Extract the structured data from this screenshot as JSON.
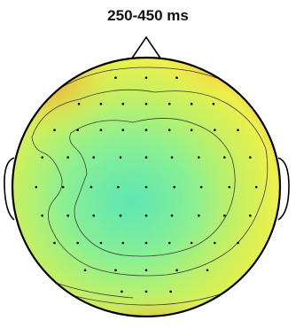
{
  "chart_data": {
    "type": "heatmap",
    "subtype": "scalp-topography",
    "title": "250-450 ms",
    "colors": {
      "low": "#5fe6b4",
      "mid_low": "#8ef090",
      "mid": "#c8f060",
      "mid_high": "#eef04a",
      "high": "#f5b43a",
      "highest": "#ec8a2c",
      "contour": "#3a3a3a",
      "head": "#000000"
    },
    "electrode_count": 64,
    "legend": "none",
    "grid": false
  }
}
